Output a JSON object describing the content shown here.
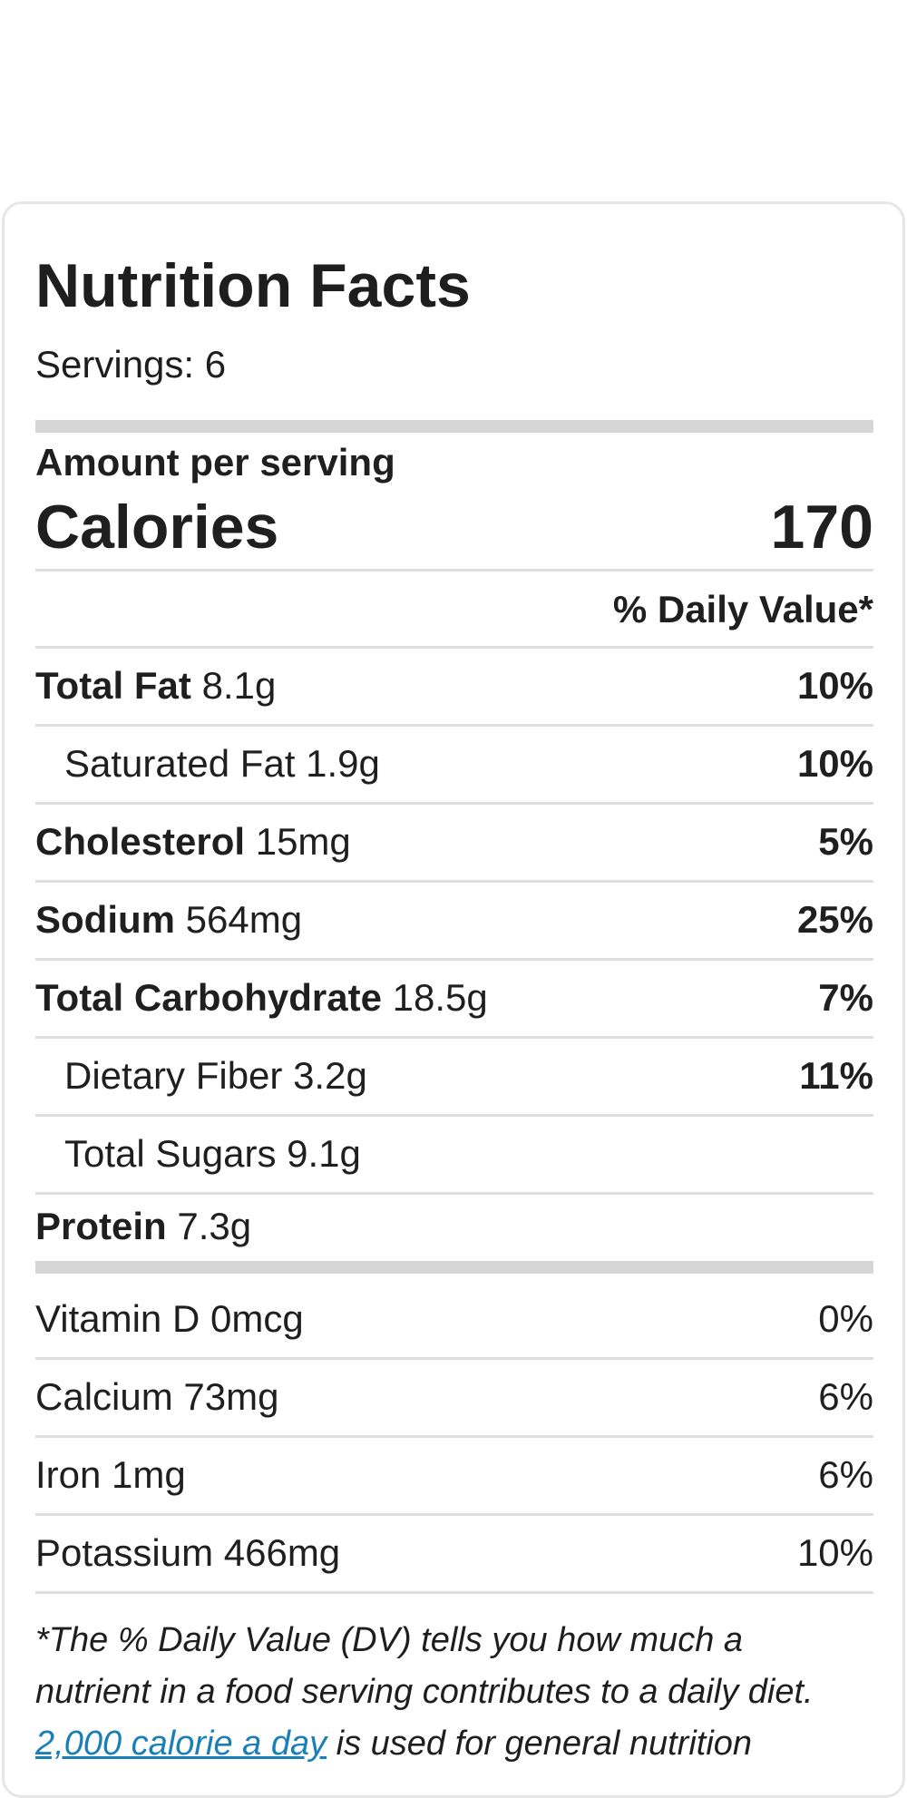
{
  "label": {
    "title": "Nutrition Facts",
    "servings": "Servings: 6",
    "amount_per_serving": "Amount per serving",
    "calories_label": "Calories",
    "calories_value": "170",
    "daily_value_header": "% Daily Value*"
  },
  "nutrients": [
    {
      "name": "Total Fat",
      "amount": "8.1g",
      "dv": "10%"
    },
    {
      "name": "Saturated Fat",
      "amount": "1.9g",
      "dv": "10%"
    },
    {
      "name": "Cholesterol",
      "amount": "15mg",
      "dv": "5%"
    },
    {
      "name": "Sodium",
      "amount": "564mg",
      "dv": "25%"
    },
    {
      "name": "Total Carbohydrate",
      "amount": "18.5g",
      "dv": "7%"
    },
    {
      "name": "Dietary Fiber",
      "amount": "3.2g",
      "dv": "11%"
    },
    {
      "name": "Total Sugars",
      "amount": "9.1g",
      "dv": ""
    },
    {
      "name": "Protein",
      "amount": "7.3g",
      "dv": ""
    }
  ],
  "vitamins": [
    {
      "name": "Vitamin D",
      "amount": "0mcg",
      "dv": "0%"
    },
    {
      "name": "Calcium",
      "amount": "73mg",
      "dv": "6%"
    },
    {
      "name": "Iron",
      "amount": "1mg",
      "dv": "6%"
    },
    {
      "name": "Potassium",
      "amount": "466mg",
      "dv": "10%"
    }
  ],
  "footnote": {
    "line1": "*The % Daily Value (DV) tells you how much a",
    "line2": "nutrient in a food serving contributes to a daily diet.",
    "link_text": "2,000 calorie a day",
    "line3_rest": " is used for general nutrition"
  },
  "colors": {
    "text": "#1e1e1e",
    "divider": "#dedede",
    "thick_bar": "#d6d6d6",
    "link": "#1a7fb6"
  }
}
